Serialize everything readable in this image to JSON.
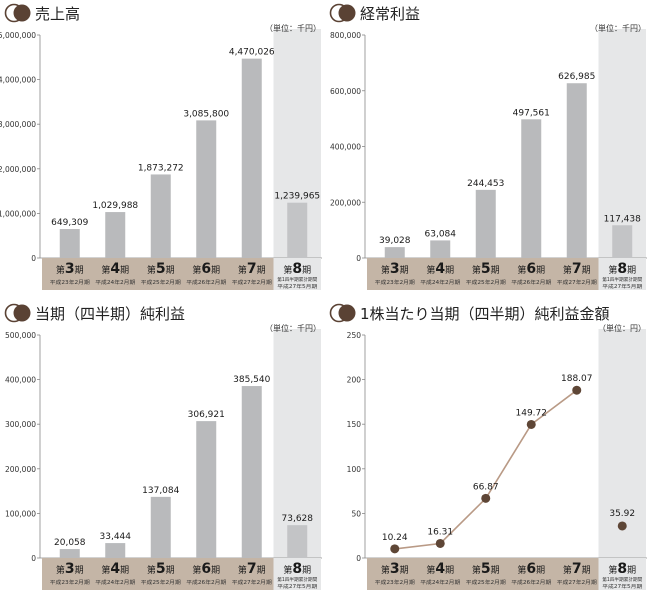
{
  "chart_data": [
    {
      "type": "bar",
      "title": "売上高",
      "unit_note": "（単位：千円）",
      "ylim": [
        0,
        5000000
      ],
      "yticks": [
        "0",
        "1,000,000",
        "2,000,000",
        "3,000,000",
        "4,000,000",
        "5,000,000"
      ],
      "categories": [
        {
          "label_num": "3",
          "label_suffix": "期",
          "sub": [
            "平成23年2月期"
          ]
        },
        {
          "label_num": "4",
          "label_suffix": "期",
          "sub": [
            "平成24年2月期"
          ]
        },
        {
          "label_num": "5",
          "label_suffix": "期",
          "sub": [
            "平成25年2月期"
          ]
        },
        {
          "label_num": "6",
          "label_suffix": "期",
          "sub": [
            "平成26年2月期"
          ]
        },
        {
          "label_num": "7",
          "label_suffix": "期",
          "sub": [
            "平成27年2月期"
          ]
        },
        {
          "label_num": "8",
          "label_suffix": "期",
          "sub": [
            "第1四半期累計期間",
            "平成27年5月期"
          ]
        }
      ],
      "label_prefix": "第",
      "values": [
        649309,
        1029988,
        1873272,
        3085800,
        4470026,
        1239965
      ],
      "value_labels": [
        "649,309",
        "1,029,988",
        "1,873,272",
        "3,085,800",
        "4,470,026",
        "1,239,965"
      ],
      "highlight_last": true
    },
    {
      "type": "bar",
      "title": "経常利益",
      "unit_note": "（単位：千円）",
      "ylim": [
        0,
        800000
      ],
      "yticks": [
        "0",
        "200,000",
        "400,000",
        "600,000",
        "800,000"
      ],
      "categories": [
        {
          "label_num": "3",
          "label_suffix": "期",
          "sub": [
            "平成23年2月期"
          ]
        },
        {
          "label_num": "4",
          "label_suffix": "期",
          "sub": [
            "平成24年2月期"
          ]
        },
        {
          "label_num": "5",
          "label_suffix": "期",
          "sub": [
            "平成25年2月期"
          ]
        },
        {
          "label_num": "6",
          "label_suffix": "期",
          "sub": [
            "平成26年2月期"
          ]
        },
        {
          "label_num": "7",
          "label_suffix": "期",
          "sub": [
            "平成27年2月期"
          ]
        },
        {
          "label_num": "8",
          "label_suffix": "期",
          "sub": [
            "第1四半期累計期間",
            "平成27年5月期"
          ]
        }
      ],
      "label_prefix": "第",
      "values": [
        39028,
        63084,
        244453,
        497561,
        626985,
        117438
      ],
      "value_labels": [
        "39,028",
        "63,084",
        "244,453",
        "497,561",
        "626,985",
        "117,438"
      ],
      "highlight_last": true
    },
    {
      "type": "bar",
      "title": "当期（四半期）純利益",
      "unit_note": "（単位：千円）",
      "ylim": [
        0,
        500000
      ],
      "yticks": [
        "0",
        "100,000",
        "200,000",
        "300,000",
        "400,000",
        "500,000"
      ],
      "categories": [
        {
          "label_num": "3",
          "label_suffix": "期",
          "sub": [
            "平成23年2月期"
          ]
        },
        {
          "label_num": "4",
          "label_suffix": "期",
          "sub": [
            "平成24年2月期"
          ]
        },
        {
          "label_num": "5",
          "label_suffix": "期",
          "sub": [
            "平成25年2月期"
          ]
        },
        {
          "label_num": "6",
          "label_suffix": "期",
          "sub": [
            "平成26年2月期"
          ]
        },
        {
          "label_num": "7",
          "label_suffix": "期",
          "sub": [
            "平成27年2月期"
          ]
        },
        {
          "label_num": "8",
          "label_suffix": "期",
          "sub": [
            "第1四半期累計期間",
            "平成27年5月期"
          ]
        }
      ],
      "label_prefix": "第",
      "values": [
        20058,
        33444,
        137084,
        306921,
        385540,
        73628
      ],
      "value_labels": [
        "20,058",
        "33,444",
        "137,084",
        "306,921",
        "385,540",
        "73,628"
      ],
      "highlight_last": true
    },
    {
      "type": "line",
      "title": "1株当たり当期（四半期）純利益金額",
      "unit_note": "（単位：円）",
      "ylim": [
        0,
        250
      ],
      "yticks": [
        "0",
        "50",
        "100",
        "150",
        "200",
        "250"
      ],
      "categories": [
        {
          "label_num": "3",
          "label_suffix": "期",
          "sub": [
            "平成23年2月期"
          ]
        },
        {
          "label_num": "4",
          "label_suffix": "期",
          "sub": [
            "平成24年2月期"
          ]
        },
        {
          "label_num": "5",
          "label_suffix": "期",
          "sub": [
            "平成25年2月期"
          ]
        },
        {
          "label_num": "6",
          "label_suffix": "期",
          "sub": [
            "平成26年2月期"
          ]
        },
        {
          "label_num": "7",
          "label_suffix": "期",
          "sub": [
            "平成27年2月期"
          ]
        },
        {
          "label_num": "8",
          "label_suffix": "期",
          "sub": [
            "第1四半期累計期間",
            "平成27年5月期"
          ]
        }
      ],
      "label_prefix": "第",
      "values": [
        10.24,
        16.31,
        66.87,
        149.72,
        188.07,
        35.92
      ],
      "value_labels": [
        "10.24",
        "16.31",
        "66.87",
        "149.72",
        "188.07",
        "35.92"
      ],
      "connected_points": 5,
      "highlight_last": true
    }
  ],
  "colors": {
    "bar": "#b9babc",
    "bar_last": "#c3c4c6",
    "highlight_bg": "#e6e7e8",
    "xaxis_band": "#c4b5a6",
    "xaxis_band_last": "#e6e7e8",
    "title_icon": "#5a4234",
    "line": "#b99a86",
    "marker": "#5e4636",
    "text": "#333333",
    "axis": "#888888"
  },
  "title_icon": "double-circle-icon"
}
